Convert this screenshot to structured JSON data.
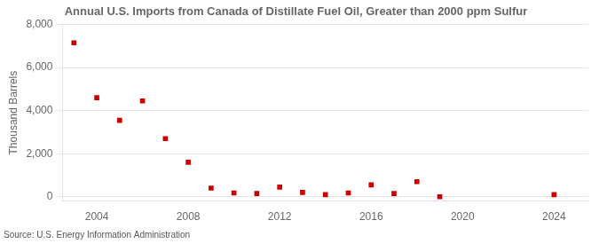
{
  "chart_data": {
    "type": "scatter",
    "title": "Annual U.S. Imports from Canada of Distillate Fuel Oil, Greater than 2000 ppm Sulfur",
    "ylabel": "Thousand Barrels",
    "annotation": "Source: U.S. Energy Information Administration",
    "x": [
      2003,
      2004,
      2005,
      2006,
      2007,
      2008,
      2009,
      2010,
      2011,
      2012,
      2013,
      2014,
      2015,
      2016,
      2017,
      2018,
      2019,
      2024
    ],
    "values": [
      7150,
      4600,
      3550,
      4450,
      2700,
      1600,
      400,
      175,
      150,
      450,
      200,
      100,
      175,
      550,
      150,
      700,
      0,
      100
    ],
    "color": "#cc0000",
    "marker": "square",
    "xlim": [
      2002.5,
      2025.5
    ],
    "xticks": [
      2004,
      2008,
      2012,
      2016,
      2020,
      2024
    ],
    "ylim": [
      -200,
      8000
    ],
    "yticks": [
      0,
      {
        "value": 2000,
        "label": "2,000"
      },
      {
        "value": 4000,
        "label": "4,000"
      },
      {
        "value": 6000,
        "label": "6,000"
      },
      {
        "value": 8000,
        "label": "8,000"
      }
    ],
    "grid": "y"
  }
}
